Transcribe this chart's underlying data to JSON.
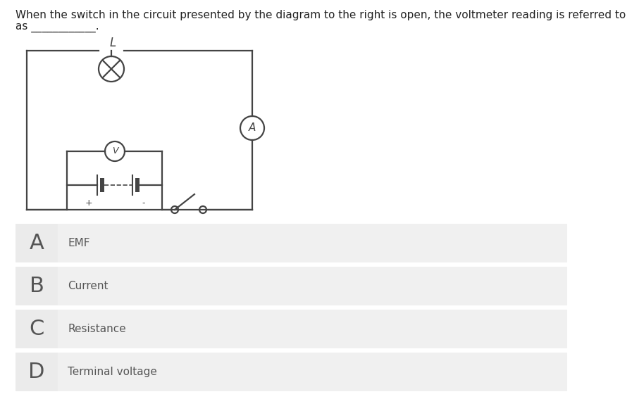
{
  "question_line1": "When the switch in the circuit presented by the diagram to the right is open, the voltmeter reading is referred to",
  "question_line2": "as ____________.",
  "options": [
    {
      "label": "A",
      "text": "EMF"
    },
    {
      "label": "B",
      "text": "Current"
    },
    {
      "label": "C",
      "text": "Resistance"
    },
    {
      "label": "D",
      "text": "Terminal voltage"
    }
  ],
  "bg_color": "#ffffff",
  "option_bg": "#f0f0f0",
  "divider_color": "#ffffff",
  "text_color": "#555555",
  "label_fontsize": 22,
  "option_fontsize": 11,
  "question_fontsize": 11,
  "circuit_color": "#444444"
}
